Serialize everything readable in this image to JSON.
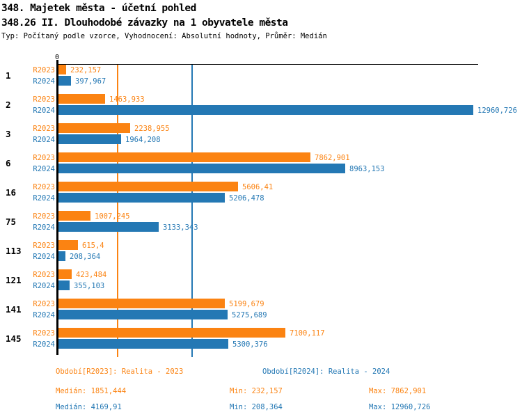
{
  "header": {
    "title": "348. Majetek města - účetní pohled",
    "subtitle": "348.26 II. Dlouhodobé závazky na 1 obyvatele města",
    "meta": "Typ: Počítaný podle vzorce, Vyhodnocení: Absolutní hodnoty, Průměr: Medián"
  },
  "colors": {
    "r2023": "#fb8312",
    "r2024": "#2478b4",
    "axis": "#000000"
  },
  "chart_data": {
    "type": "bar",
    "orientation": "horizontal",
    "title": "348.26 II. Dlouhodobé závazky na 1 obyvatele města",
    "axis_zero_label": "0",
    "xlim": [
      0,
      13050
    ],
    "grid": "vertical median lines only",
    "legend_position": "bottom",
    "categories": [
      "1",
      "2",
      "3",
      "6",
      "16",
      "75",
      "113",
      "121",
      "141",
      "145"
    ],
    "series": [
      {
        "name": "R2023",
        "color": "#fb8312",
        "values": [
          232.157,
          1463.933,
          2238.955,
          7862.901,
          5606.41,
          1007.245,
          615.4,
          423.484,
          5199.679,
          7100.117
        ],
        "value_labels": [
          "232,157",
          "1463,933",
          "2238,955",
          "7862,901",
          "5606,41",
          "1007,245",
          "615,4",
          "423,484",
          "5199,679",
          "7100,117"
        ],
        "median": 1851.444
      },
      {
        "name": "R2024",
        "color": "#2478b4",
        "values": [
          397.967,
          12960.726,
          1964.208,
          8963.153,
          5206.478,
          3133.343,
          208.364,
          355.103,
          5275.689,
          5300.376
        ],
        "value_labels": [
          "397,967",
          "12960,726",
          "1964,208",
          "8963,153",
          "5206,478",
          "3133,343",
          "208,364",
          "355,103",
          "5275,689",
          "5300,376"
        ],
        "median": 4169.91
      }
    ]
  },
  "footer": {
    "legend": [
      {
        "text": "Období[R2023]: Realita - 2023",
        "color": "#fb8312"
      },
      {
        "text": "Období[R2024]: Realita - 2024",
        "color": "#2478b4"
      }
    ],
    "stats": [
      {
        "median": "Medián: 1851,444",
        "min": "Min: 232,157",
        "max": "Max: 7862,901",
        "color": "#fb8312"
      },
      {
        "median": "Medián: 4169,91",
        "min": "Min: 208,364",
        "max": "Max: 12960,726",
        "color": "#2478b4"
      }
    ]
  }
}
